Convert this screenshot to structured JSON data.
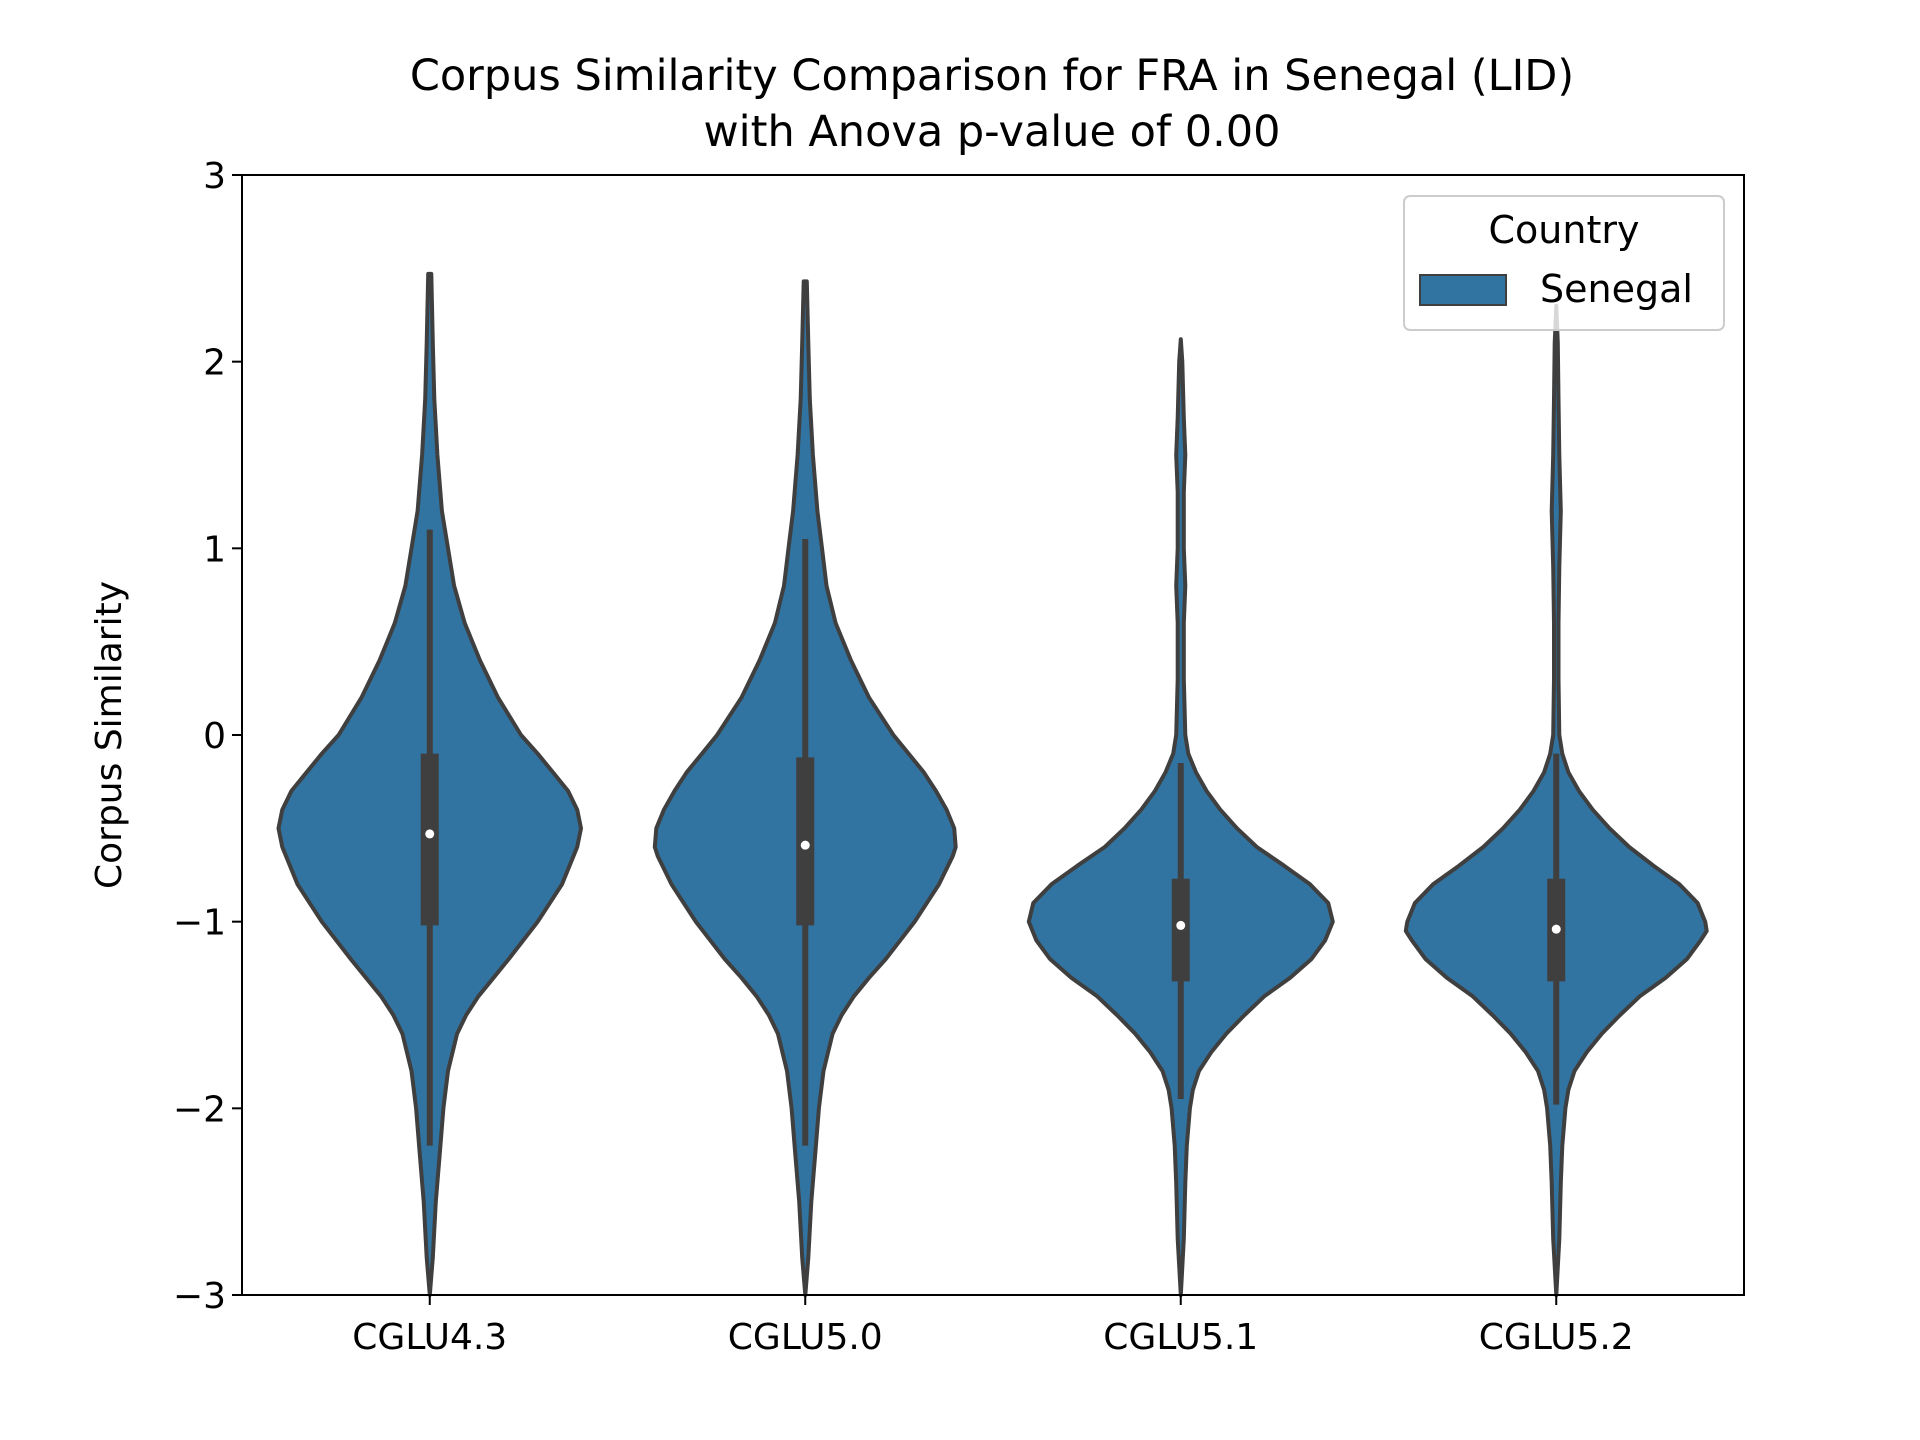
{
  "chart_data": {
    "type": "violin",
    "title": [
      "Corpus Similarity Comparison for FRA in Senegal (LID)",
      "with Anova p-value of 0.00"
    ],
    "xlabel": "",
    "ylabel": "Corpus Similarity",
    "ylim": [
      -3,
      3
    ],
    "yticks": [
      -3,
      -2,
      -1,
      0,
      1,
      2,
      3
    ],
    "ytick_labels": [
      "−3",
      "−2",
      "−1",
      "0",
      "1",
      "2",
      "3"
    ],
    "categories": [
      "CGLU4.3",
      "CGLU5.0",
      "CGLU5.1",
      "CGLU5.2"
    ],
    "grid": false,
    "legend": {
      "title": "Country",
      "entries": [
        "Senegal"
      ],
      "placement": "top-right"
    },
    "colors": {
      "fill": "#3274a1",
      "edge": "#3f3f3f",
      "median": "#ffffff"
    },
    "series": [
      {
        "name": "Senegal",
        "violins": [
          {
            "category": "CGLU4.3",
            "min": -2.2,
            "q1": -1.02,
            "median": -0.53,
            "q3": -0.1,
            "max": 1.1,
            "extent": [
              -3.0,
              2.47
            ],
            "profile": [
              [
                -3.0,
                0.0
              ],
              [
                -2.8,
                0.02
              ],
              [
                -2.5,
                0.04
              ],
              [
                -2.2,
                0.07
              ],
              [
                -2.0,
                0.09
              ],
              [
                -1.8,
                0.12
              ],
              [
                -1.6,
                0.18
              ],
              [
                -1.5,
                0.24
              ],
              [
                -1.4,
                0.32
              ],
              [
                -1.3,
                0.42
              ],
              [
                -1.2,
                0.52
              ],
              [
                -1.0,
                0.71
              ],
              [
                -0.8,
                0.87
              ],
              [
                -0.6,
                0.97
              ],
              [
                -0.5,
                0.995
              ],
              [
                -0.4,
                0.97
              ],
              [
                -0.3,
                0.91
              ],
              [
                -0.2,
                0.81
              ],
              [
                -0.1,
                0.71
              ],
              [
                0.0,
                0.6
              ],
              [
                0.2,
                0.45
              ],
              [
                0.4,
                0.33
              ],
              [
                0.6,
                0.23
              ],
              [
                0.8,
                0.16
              ],
              [
                1.0,
                0.12
              ],
              [
                1.2,
                0.08
              ],
              [
                1.5,
                0.05
              ],
              [
                1.8,
                0.03
              ],
              [
                2.1,
                0.02
              ],
              [
                2.47,
                0.01
              ]
            ]
          },
          {
            "category": "CGLU5.0",
            "min": -2.2,
            "q1": -1.02,
            "median": -0.59,
            "q3": -0.12,
            "max": 1.05,
            "extent": [
              -3.0,
              2.43
            ],
            "profile": [
              [
                -3.0,
                0.0
              ],
              [
                -2.8,
                0.02
              ],
              [
                -2.5,
                0.04
              ],
              [
                -2.2,
                0.07
              ],
              [
                -2.0,
                0.09
              ],
              [
                -1.8,
                0.12
              ],
              [
                -1.6,
                0.18
              ],
              [
                -1.5,
                0.24
              ],
              [
                -1.4,
                0.32
              ],
              [
                -1.3,
                0.42
              ],
              [
                -1.2,
                0.53
              ],
              [
                -1.0,
                0.72
              ],
              [
                -0.8,
                0.88
              ],
              [
                -0.65,
                0.97
              ],
              [
                -0.6,
                0.99
              ],
              [
                -0.5,
                0.98
              ],
              [
                -0.4,
                0.93
              ],
              [
                -0.3,
                0.86
              ],
              [
                -0.2,
                0.78
              ],
              [
                -0.1,
                0.68
              ],
              [
                0.0,
                0.58
              ],
              [
                0.2,
                0.42
              ],
              [
                0.4,
                0.3
              ],
              [
                0.6,
                0.2
              ],
              [
                0.8,
                0.14
              ],
              [
                1.0,
                0.11
              ],
              [
                1.2,
                0.08
              ],
              [
                1.5,
                0.05
              ],
              [
                1.8,
                0.03
              ],
              [
                2.1,
                0.02
              ],
              [
                2.43,
                0.01
              ]
            ]
          },
          {
            "category": "CGLU5.1",
            "min": -1.95,
            "q1": -1.32,
            "median": -1.02,
            "q3": -0.77,
            "max": -0.15,
            "extent": [
              -3.0,
              2.12
            ],
            "profile": [
              [
                -3.0,
                0.0
              ],
              [
                -2.7,
                0.02
              ],
              [
                -2.4,
                0.03
              ],
              [
                -2.2,
                0.04
              ],
              [
                -2.0,
                0.06
              ],
              [
                -1.9,
                0.08
              ],
              [
                -1.8,
                0.12
              ],
              [
                -1.7,
                0.2
              ],
              [
                -1.6,
                0.3
              ],
              [
                -1.5,
                0.42
              ],
              [
                -1.4,
                0.55
              ],
              [
                -1.3,
                0.72
              ],
              [
                -1.2,
                0.86
              ],
              [
                -1.1,
                0.95
              ],
              [
                -1.0,
                1.0
              ],
              [
                -0.9,
                0.97
              ],
              [
                -0.8,
                0.85
              ],
              [
                -0.7,
                0.68
              ],
              [
                -0.6,
                0.5
              ],
              [
                -0.5,
                0.37
              ],
              [
                -0.4,
                0.26
              ],
              [
                -0.3,
                0.17
              ],
              [
                -0.2,
                0.1
              ],
              [
                -0.1,
                0.05
              ],
              [
                0.0,
                0.03
              ],
              [
                0.3,
                0.02
              ],
              [
                0.6,
                0.02
              ],
              [
                0.8,
                0.03
              ],
              [
                1.0,
                0.02
              ],
              [
                1.3,
                0.02
              ],
              [
                1.5,
                0.03
              ],
              [
                1.7,
                0.02
              ],
              [
                2.0,
                0.01
              ],
              [
                2.12,
                0.0
              ]
            ]
          },
          {
            "category": "CGLU5.2",
            "min": -1.98,
            "q1": -1.32,
            "median": -1.04,
            "q3": -0.77,
            "max": -0.1,
            "extent": [
              -3.0,
              2.3
            ],
            "profile": [
              [
                -3.0,
                0.0
              ],
              [
                -2.7,
                0.02
              ],
              [
                -2.4,
                0.03
              ],
              [
                -2.2,
                0.04
              ],
              [
                -2.0,
                0.06
              ],
              [
                -1.9,
                0.08
              ],
              [
                -1.8,
                0.12
              ],
              [
                -1.7,
                0.2
              ],
              [
                -1.6,
                0.3
              ],
              [
                -1.5,
                0.42
              ],
              [
                -1.4,
                0.55
              ],
              [
                -1.3,
                0.72
              ],
              [
                -1.2,
                0.86
              ],
              [
                -1.1,
                0.95
              ],
              [
                -1.05,
                0.99
              ],
              [
                -1.0,
                0.98
              ],
              [
                -0.9,
                0.93
              ],
              [
                -0.8,
                0.81
              ],
              [
                -0.7,
                0.64
              ],
              [
                -0.6,
                0.48
              ],
              [
                -0.5,
                0.35
              ],
              [
                -0.4,
                0.24
              ],
              [
                -0.3,
                0.15
              ],
              [
                -0.2,
                0.08
              ],
              [
                -0.1,
                0.04
              ],
              [
                0.0,
                0.02
              ],
              [
                0.3,
                0.015
              ],
              [
                0.6,
                0.015
              ],
              [
                0.9,
                0.02
              ],
              [
                1.2,
                0.03
              ],
              [
                1.5,
                0.02
              ],
              [
                1.8,
                0.015
              ],
              [
                2.1,
                0.01
              ],
              [
                2.3,
                0.0
              ]
            ]
          }
        ]
      }
    ]
  }
}
